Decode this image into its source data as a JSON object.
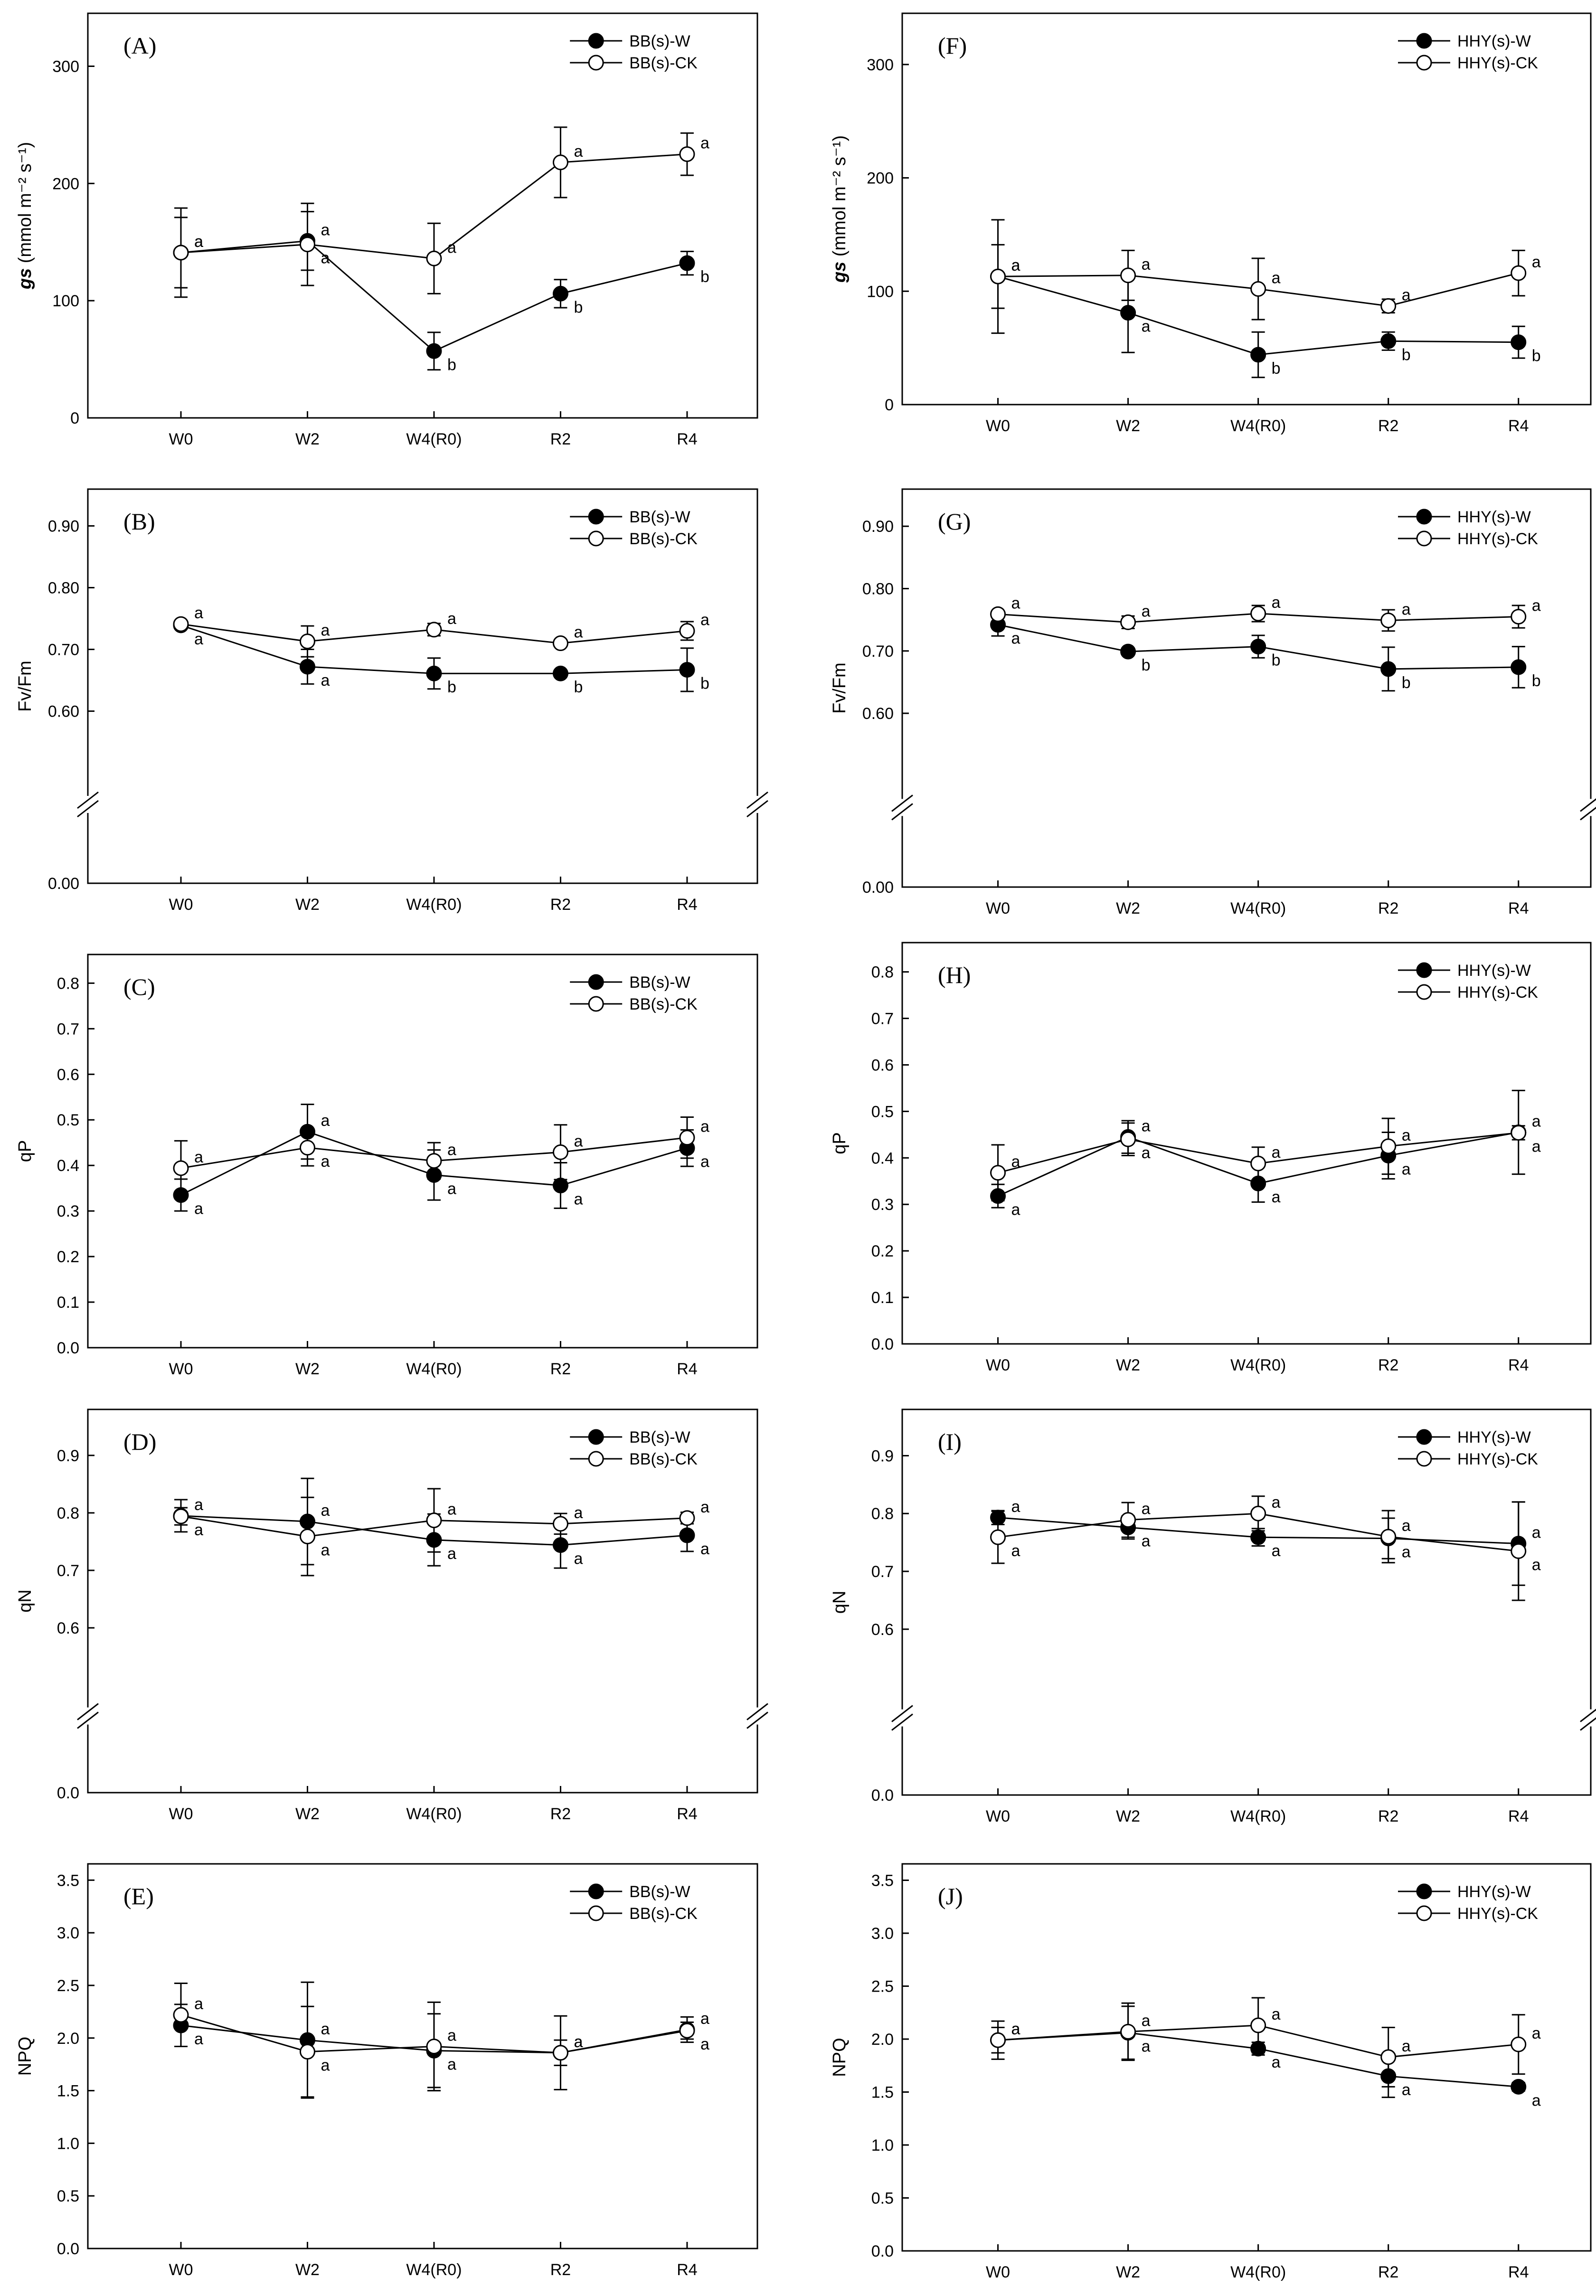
{
  "chart_data": [
    {
      "id": "A",
      "type": "line",
      "panel_label": "(A)",
      "categories": [
        "W0",
        "W2",
        "W4(R0)",
        "R2",
        "R4"
      ],
      "ylabel_italic": "gs",
      "ylabel_unit": "(mmol m⁻² s⁻¹)",
      "ylim": [
        0,
        340
      ],
      "yticks": [
        0,
        100,
        200,
        300
      ],
      "ytick_labels": [
        "0",
        "100",
        "200",
        "300"
      ],
      "axis_break": false,
      "series": [
        {
          "name": "BB(s)-W",
          "marker": "filled",
          "values": [
            141,
            151,
            57,
            106,
            132
          ],
          "errors": [
            38,
            25,
            16,
            12,
            10
          ],
          "labels": [
            "a",
            "a",
            "b",
            "b",
            "b"
          ]
        },
        {
          "name": "BB(s)-CK",
          "marker": "open",
          "values": [
            141,
            148,
            136,
            218,
            225
          ],
          "errors": [
            30,
            35,
            30,
            30,
            18
          ],
          "labels": [
            "a",
            "a",
            "a",
            "a",
            "a"
          ]
        }
      ]
    },
    {
      "id": "B",
      "type": "line",
      "panel_label": "(B)",
      "categories": [
        "W0",
        "W2",
        "W4(R0)",
        "R2",
        "R4"
      ],
      "ylabel": "Fv/Fm",
      "ylim": [
        0.5,
        0.95
      ],
      "yticks": [
        0.6,
        0.7,
        0.8,
        0.9
      ],
      "ytick_labels": [
        "0.60",
        "0.70",
        "0.80",
        "0.90"
      ],
      "axis_break": true,
      "break_bottom_label": "0.00",
      "series": [
        {
          "name": "BB(s)-W",
          "marker": "filled",
          "values": [
            0.739,
            0.672,
            0.661,
            0.661,
            0.667
          ],
          "errors": [
            0.005,
            0.028,
            0.025,
            0.005,
            0.035
          ],
          "labels": [
            "a",
            "a",
            "b",
            "b",
            "b"
          ]
        },
        {
          "name": "BB(s)-CK",
          "marker": "open",
          "values": [
            0.741,
            0.713,
            0.732,
            0.71,
            0.73
          ],
          "errors": [
            0.004,
            0.025,
            0.01,
            0.004,
            0.015
          ],
          "labels": [
            "a",
            "a",
            "a",
            "a",
            "a"
          ]
        }
      ]
    },
    {
      "id": "C",
      "type": "line",
      "panel_label": "(C)",
      "categories": [
        "W0",
        "W2",
        "W4(R0)",
        "R2",
        "R4"
      ],
      "ylabel": "qP",
      "ylim": [
        0,
        0.85
      ],
      "yticks": [
        0,
        0.1,
        0.2,
        0.3,
        0.4,
        0.5,
        0.6,
        0.7,
        0.8
      ],
      "ytick_labels": [
        "0.0",
        "0.1",
        "0.2",
        "0.3",
        "0.4",
        "0.5",
        "0.6",
        "0.7",
        "0.8"
      ],
      "axis_break": false,
      "series": [
        {
          "name": "BB(s)-W",
          "marker": "filled",
          "values": [
            0.335,
            0.474,
            0.379,
            0.356,
            0.438
          ],
          "errors": [
            0.035,
            0.06,
            0.055,
            0.05,
            0.04
          ],
          "labels": [
            "a",
            "a",
            "a",
            "a",
            "a"
          ]
        },
        {
          "name": "BB(s)-CK",
          "marker": "open",
          "values": [
            0.394,
            0.439,
            0.41,
            0.429,
            0.461
          ],
          "errors": [
            0.06,
            0.04,
            0.04,
            0.06,
            0.045
          ],
          "labels": [
            "a",
            "a",
            "a",
            "a",
            "a"
          ]
        }
      ]
    },
    {
      "id": "D",
      "type": "line",
      "panel_label": "(D)",
      "categories": [
        "W0",
        "W2",
        "W4(R0)",
        "R2",
        "R4"
      ],
      "ylabel": "qN",
      "ylim": [
        0.5,
        0.97
      ],
      "yticks": [
        0.6,
        0.7,
        0.8,
        0.9
      ],
      "ytick_labels": [
        "0.6",
        "0.7",
        "0.8",
        "0.9"
      ],
      "axis_break": true,
      "break_bottom_label": "0.0",
      "series": [
        {
          "name": "BB(s)-W",
          "marker": "filled",
          "values": [
            0.795,
            0.785,
            0.753,
            0.744,
            0.761
          ],
          "errors": [
            0.028,
            0.075,
            0.045,
            0.04,
            0.028
          ],
          "labels": [
            "a",
            "a",
            "a",
            "a",
            "a"
          ]
        },
        {
          "name": "BB(s)-CK",
          "marker": "open",
          "values": [
            0.794,
            0.759,
            0.787,
            0.781,
            0.791
          ],
          "errors": [
            0.015,
            0.068,
            0.055,
            0.018,
            0.01
          ],
          "labels": [
            "a",
            "a",
            "a",
            "a",
            "a"
          ]
        }
      ]
    },
    {
      "id": "E",
      "type": "line",
      "panel_label": "(E)",
      "categories": [
        "W0",
        "W2",
        "W4(R0)",
        "R2",
        "R4"
      ],
      "ylabel": "NPQ",
      "ylim": [
        0,
        3.6
      ],
      "yticks": [
        0,
        0.5,
        1,
        1.5,
        2,
        2.5,
        3,
        3.5
      ],
      "ytick_labels": [
        "0.0",
        "0.5",
        "1.0",
        "1.5",
        "2.0",
        "2.5",
        "3.0",
        "3.5"
      ],
      "axis_break": false,
      "series": [
        {
          "name": "BB(s)-W",
          "marker": "filled",
          "values": [
            2.12,
            1.98,
            1.88,
            1.86,
            2.08
          ],
          "errors": [
            0.2,
            0.55,
            0.35,
            0.35,
            0.12
          ],
          "labels": [
            "a",
            "a",
            "a",
            "a",
            "a"
          ]
        },
        {
          "name": "BB(s)-CK",
          "marker": "open",
          "values": [
            2.22,
            1.87,
            1.92,
            1.86,
            2.07
          ],
          "errors": [
            0.3,
            0.43,
            0.42,
            0.12,
            0.08
          ],
          "labels": [
            "a",
            "a",
            "a",
            "a",
            "a"
          ]
        }
      ]
    },
    {
      "id": "F",
      "type": "line",
      "panel_label": "(F)",
      "categories": [
        "W0",
        "W2",
        "W4(R0)",
        "R2",
        "R4"
      ],
      "ylabel_italic": "gs",
      "ylabel_unit": "(mmol m⁻² s⁻¹)",
      "ylim": [
        0,
        340
      ],
      "yticks": [
        0,
        100,
        200,
        300
      ],
      "ytick_labels": [
        "0",
        "100",
        "200",
        "300"
      ],
      "axis_break": false,
      "series": [
        {
          "name": "HHY(s)-W",
          "marker": "filled",
          "values": [
            113,
            81,
            44,
            56,
            55
          ],
          "errors": [
            28,
            35,
            20,
            8,
            14
          ],
          "labels": [
            "a",
            "a",
            "b",
            "b",
            "b"
          ]
        },
        {
          "name": "HHY(s)-CK",
          "marker": "open",
          "values": [
            113,
            114,
            102,
            87,
            116
          ],
          "errors": [
            50,
            22,
            27,
            6,
            20
          ],
          "labels": [
            "a",
            "a",
            "a",
            "a",
            "a"
          ]
        }
      ]
    },
    {
      "id": "G",
      "type": "line",
      "panel_label": "(G)",
      "categories": [
        "W0",
        "W2",
        "W4(R0)",
        "R2",
        "R4"
      ],
      "ylabel": "Fv/Fm",
      "ylim": [
        0.5,
        0.95
      ],
      "yticks": [
        0.6,
        0.7,
        0.8,
        0.9
      ],
      "ytick_labels": [
        "0.60",
        "0.70",
        "0.80",
        "0.90"
      ],
      "axis_break": true,
      "break_bottom_label": "0.00",
      "series": [
        {
          "name": "HHY(s)-W",
          "marker": "filled",
          "values": [
            0.742,
            0.699,
            0.707,
            0.671,
            0.674
          ],
          "errors": [
            0.018,
            0.004,
            0.018,
            0.035,
            0.033
          ],
          "labels": [
            "a",
            "b",
            "b",
            "b",
            "b"
          ]
        },
        {
          "name": "HHY(s)-CK",
          "marker": "open",
          "values": [
            0.759,
            0.746,
            0.76,
            0.749,
            0.755
          ],
          "errors": [
            0.004,
            0.01,
            0.013,
            0.017,
            0.018
          ],
          "labels": [
            "a",
            "a",
            "a",
            "a",
            "a"
          ]
        }
      ]
    },
    {
      "id": "H",
      "type": "line",
      "panel_label": "(H)",
      "categories": [
        "W0",
        "W2",
        "W4(R0)",
        "R2",
        "R4"
      ],
      "ylabel": "qP",
      "ylim": [
        0,
        0.85
      ],
      "yticks": [
        0,
        0.1,
        0.2,
        0.3,
        0.4,
        0.5,
        0.6,
        0.7,
        0.8
      ],
      "ytick_labels": [
        "0.0",
        "0.1",
        "0.2",
        "0.3",
        "0.4",
        "0.5",
        "0.6",
        "0.7",
        "0.8"
      ],
      "axis_break": false,
      "series": [
        {
          "name": "HHY(s)-W",
          "marker": "filled",
          "values": [
            0.318,
            0.445,
            0.345,
            0.405,
            0.455
          ],
          "errors": [
            0.025,
            0.035,
            0.04,
            0.05,
            0.09
          ],
          "labels": [
            "a",
            "a",
            "a",
            "a",
            "a"
          ]
        },
        {
          "name": "HHY(s)-CK",
          "marker": "open",
          "values": [
            0.368,
            0.44,
            0.388,
            0.425,
            0.454
          ],
          "errors": [
            0.06,
            0.035,
            0.035,
            0.06,
            0.015
          ],
          "labels": [
            "a",
            "a",
            "a",
            "a",
            "a"
          ]
        }
      ]
    },
    {
      "id": "I",
      "type": "line",
      "panel_label": "(I)",
      "categories": [
        "W0",
        "W2",
        "W4(R0)",
        "R2",
        "R4"
      ],
      "ylabel": "qN",
      "ylim": [
        0.5,
        0.97
      ],
      "yticks": [
        0.6,
        0.7,
        0.8,
        0.9
      ],
      "ytick_labels": [
        "0.6",
        "0.7",
        "0.8",
        "0.9"
      ],
      "axis_break": true,
      "break_bottom_label": "0.0",
      "series": [
        {
          "name": "HHY(s)-W",
          "marker": "filled",
          "values": [
            0.793,
            0.776,
            0.759,
            0.757,
            0.748
          ],
          "errors": [
            0.012,
            0.02,
            0.015,
            0.035,
            0.072
          ],
          "labels": [
            "a",
            "a",
            "a",
            "a",
            "a"
          ]
        },
        {
          "name": "HHY(s)-CK",
          "marker": "open",
          "values": [
            0.759,
            0.789,
            0.8,
            0.76,
            0.735
          ],
          "errors": [
            0.045,
            0.03,
            0.03,
            0.045,
            0.085
          ],
          "labels": [
            "a",
            "a",
            "a",
            "a",
            "a"
          ]
        }
      ]
    },
    {
      "id": "J",
      "type": "line",
      "panel_label": "(J)",
      "categories": [
        "W0",
        "W2",
        "W4(R0)",
        "R2",
        "R4"
      ],
      "ylabel": "NPQ",
      "ylim": [
        0,
        3.6
      ],
      "yticks": [
        0,
        0.5,
        1,
        1.5,
        2,
        2.5,
        3,
        3.5
      ],
      "ytick_labels": [
        "0.0",
        "0.5",
        "1.0",
        "1.5",
        "2.0",
        "2.5",
        "3.0",
        "3.5"
      ],
      "axis_break": false,
      "series": [
        {
          "name": "HHY(s)-W",
          "marker": "filled",
          "values": [
            1.99,
            2.06,
            1.91,
            1.65,
            1.55
          ],
          "errors": [
            0.12,
            0.25,
            0.06,
            0.2,
            0.04
          ],
          "labels": [
            "a",
            "a",
            "a",
            "a",
            "a"
          ]
        },
        {
          "name": "HHY(s)-CK",
          "marker": "open",
          "values": [
            1.99,
            2.07,
            2.13,
            1.83,
            1.95
          ],
          "errors": [
            0.18,
            0.27,
            0.26,
            0.28,
            0.28
          ],
          "labels": [
            "a",
            "a",
            "a",
            "a",
            "a"
          ]
        }
      ]
    }
  ]
}
